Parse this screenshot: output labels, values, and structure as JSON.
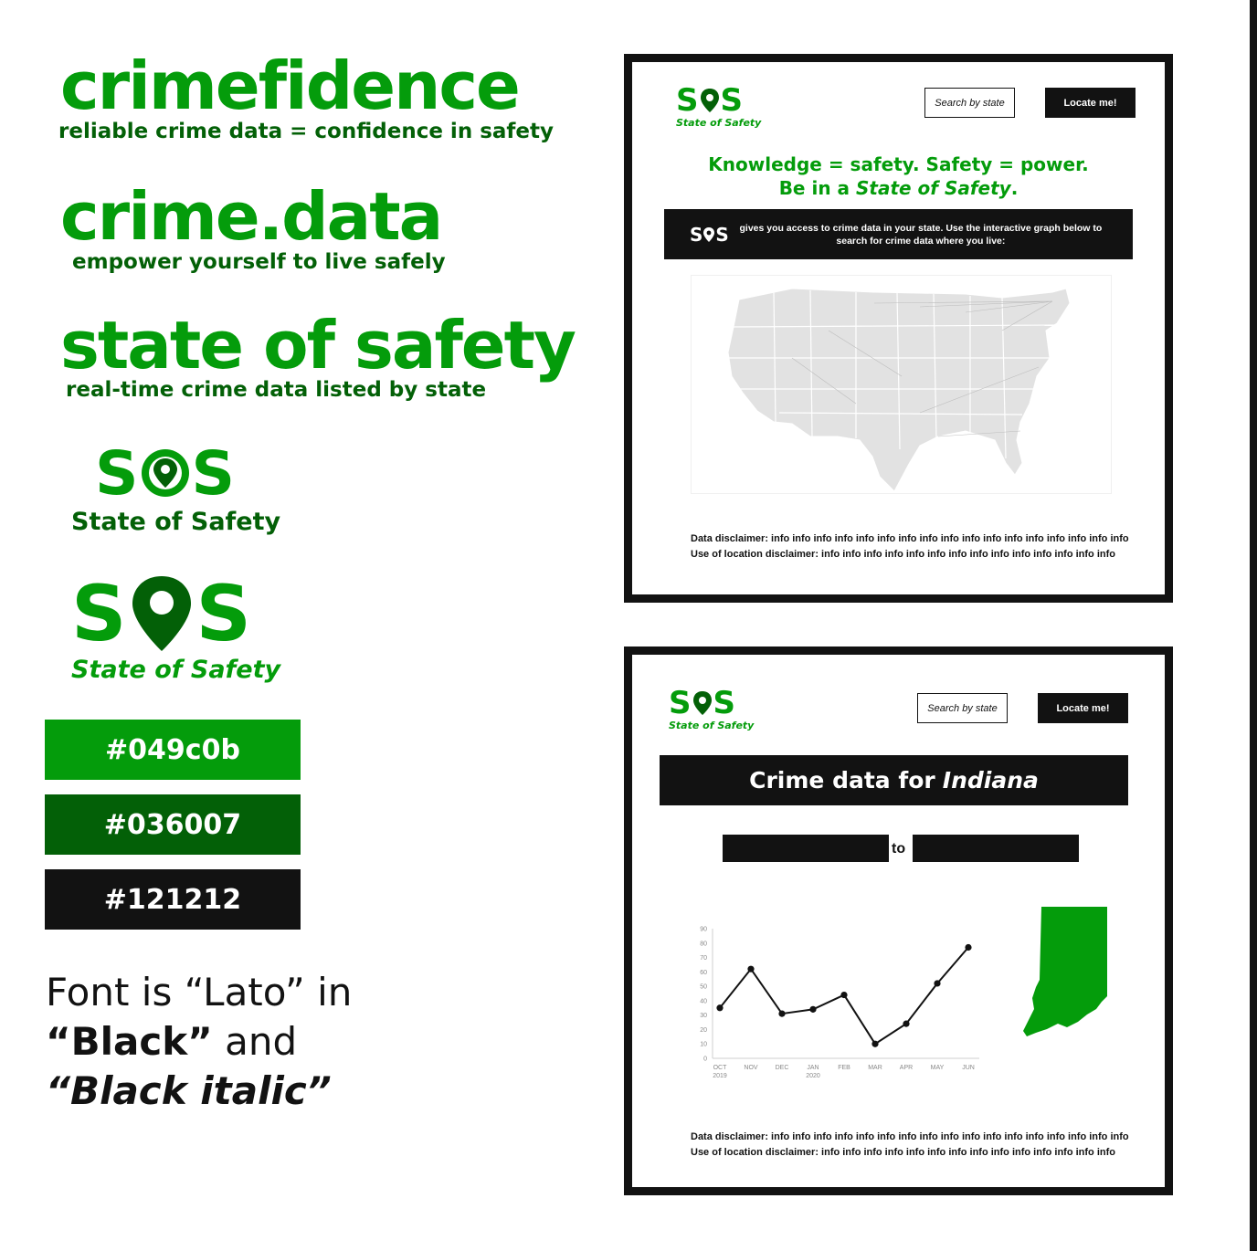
{
  "colors": {
    "green": "#049c0b",
    "dark_green": "#036007",
    "black": "#121212"
  },
  "names": [
    {
      "name": "crimefidence",
      "tagline": "reliable crime data = confidence in safety"
    },
    {
      "name": "crime.data",
      "tagline": "empower yourself to live safely"
    },
    {
      "name": "state of safety",
      "tagline": "real-time crime data listed by state"
    }
  ],
  "logo": {
    "letter1": "S",
    "letter2": "S",
    "caption": "State of Safety",
    "pin_icon": "map-pin-icon"
  },
  "swatches": [
    "#049c0b",
    "#036007",
    "#121212"
  ],
  "font_note": {
    "line1": "Font is “Lato” in",
    "line2_bold": "“Black”",
    "line2_rest": " and",
    "line3": "“Black italic”"
  },
  "mockup_home": {
    "search_placeholder": "Search by state",
    "locate_label": "Locate me!",
    "headline_line1": "Knowledge = safety. Safety = power.",
    "headline_line2_pre": "Be in a ",
    "headline_line2_em": "State of Safety",
    "headline_line2_post": ".",
    "intro_text": "gives you access to crime data in your state. Use the interactive graph below to search for crime data where you live:",
    "disclaimer_data": "Data disclaimer: info info info info info info info info info info info info info info info info info",
    "disclaimer_location": "Use of location disclaimer: info info info info info info info info info info info info info info"
  },
  "mockup_state": {
    "search_placeholder": "Search by state",
    "locate_label": "Locate me!",
    "title_pre": "Crime data for",
    "title_state": "Indiana",
    "range_to": "to",
    "disclaimer_data": "Data disclaimer: info info info info info info info info info info info info info info info info info",
    "disclaimer_location": "Use of location disclaimer: info info info info info info info info info info info info info info"
  },
  "chart_data": {
    "type": "line",
    "categories": [
      "OCT",
      "NOV",
      "DEC",
      "JAN",
      "FEB",
      "MAR",
      "APR",
      "MAY",
      "JUN"
    ],
    "sublabels": [
      "2019",
      "",
      "",
      "2020",
      "",
      "",
      "",
      "",
      ""
    ],
    "values": [
      35,
      62,
      31,
      34,
      44,
      10,
      24,
      52,
      77
    ],
    "yticks": [
      0,
      10,
      20,
      30,
      40,
      50,
      60,
      70,
      80,
      90
    ],
    "ylim": [
      0,
      90
    ],
    "title": "",
    "xlabel": "",
    "ylabel": "",
    "grid": false,
    "color": "#121212"
  }
}
